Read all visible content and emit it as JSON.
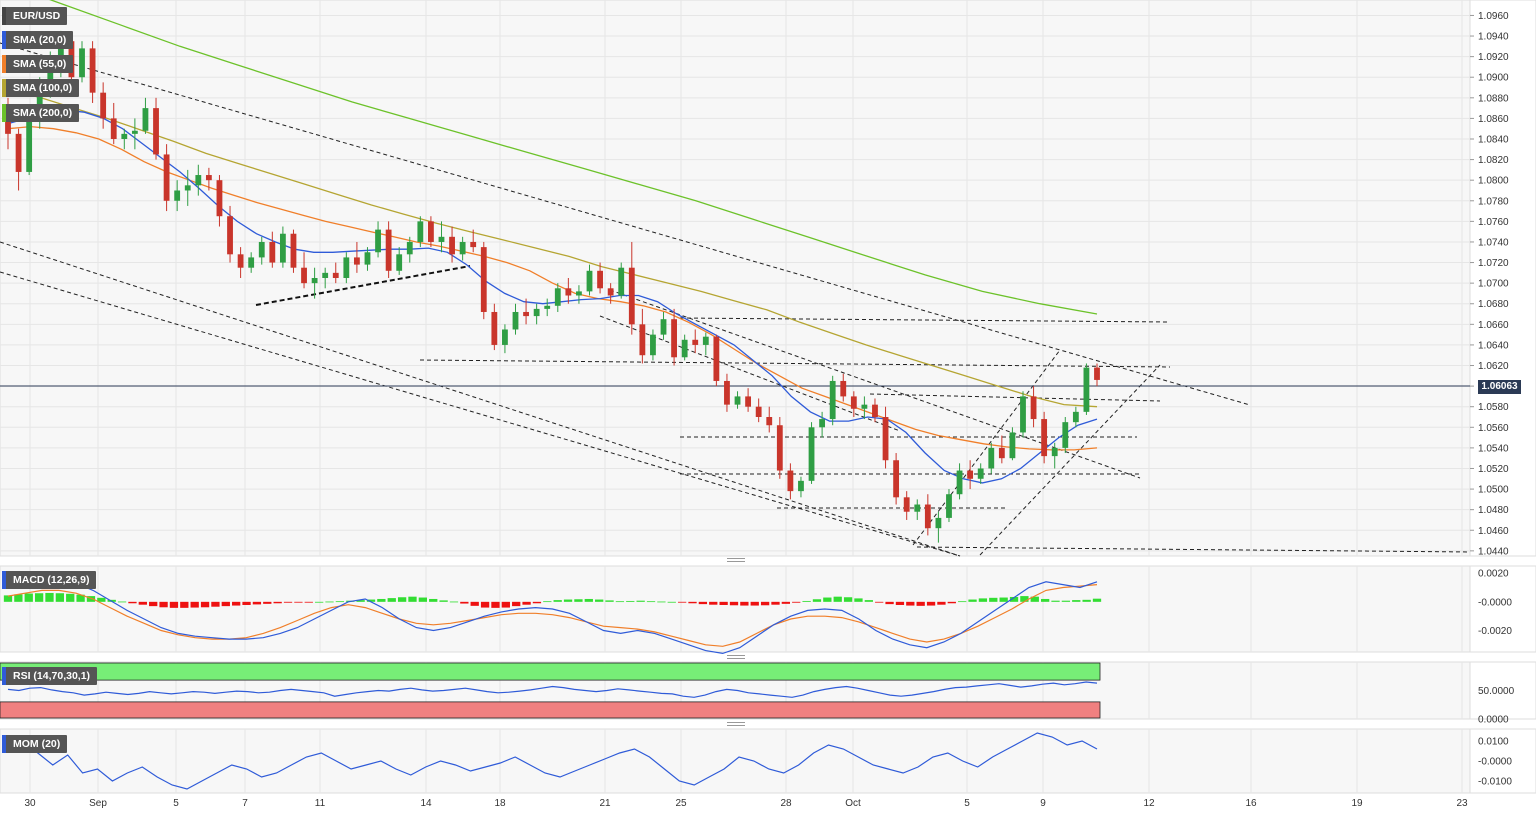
{
  "panel_labels": {
    "symbol": "EUR/USD",
    "sma20": "SMA (20,0)",
    "sma55": "SMA (55,0)",
    "sma100": "SMA (100,0)",
    "sma200": "SMA (200,0)",
    "macd": "MACD (12,26,9)",
    "rsi": "RSI (14,70,30,1)",
    "mom": "MOM (20)"
  },
  "colors": {
    "sma20": "#2f5bd8",
    "sma55": "#f07f2a",
    "sma100": "#b5a532",
    "sma200": "#6cc22a",
    "bull": "#2f9e44",
    "bear": "#c9352b",
    "macd_pos": "#33dd33",
    "macd_neg": "#ee1111",
    "price_tag_bg": "#2b3a55"
  },
  "chart_data": {
    "type": "candlestick",
    "symbol": "EUR/USD",
    "last_price": "1.06063",
    "price_axis": {
      "ylim": [
        1.0435,
        1.0975
      ],
      "ticks": [
        "1.0960",
        "1.0940",
        "1.0920",
        "1.0900",
        "1.0880",
        "1.0860",
        "1.0840",
        "1.0820",
        "1.0800",
        "1.0780",
        "1.0760",
        "1.0740",
        "1.0720",
        "1.0700",
        "1.0680",
        "1.0660",
        "1.0640",
        "1.0620",
        "1.0600",
        "1.0580",
        "1.0560",
        "1.0540",
        "1.0520",
        "1.0500",
        "1.0480",
        "1.0460",
        "1.0440"
      ]
    },
    "date_axis": {
      "ticks": [
        "30",
        "Sep",
        "5",
        "7",
        "11",
        "14",
        "18",
        "21",
        "25",
        "28",
        "Oct",
        "5",
        "9",
        "12",
        "16",
        "19",
        "23"
      ]
    },
    "candles": [
      [
        1.0862,
        1.088,
        1.083,
        1.0845
      ],
      [
        1.0845,
        1.085,
        1.079,
        1.0808
      ],
      [
        1.0808,
        1.087,
        1.0805,
        1.0862
      ],
      [
        1.0862,
        1.09,
        1.085,
        1.0893
      ],
      [
        1.0893,
        1.0925,
        1.088,
        1.0918
      ],
      [
        1.0918,
        1.0945,
        1.09,
        1.0935
      ],
      [
        1.0935,
        1.094,
        1.089,
        1.09
      ],
      [
        1.09,
        1.0935,
        1.0895,
        1.0928
      ],
      [
        1.0928,
        1.0935,
        1.0875,
        1.0885
      ],
      [
        1.0885,
        1.0895,
        1.085,
        1.086
      ],
      [
        1.086,
        1.0875,
        1.0835,
        1.084
      ],
      [
        1.084,
        1.085,
        1.083,
        1.0845
      ],
      [
        1.0845,
        1.086,
        1.083,
        1.0848
      ],
      [
        1.0848,
        1.088,
        1.0845,
        1.087
      ],
      [
        1.087,
        1.088,
        1.082,
        1.0825
      ],
      [
        1.0825,
        1.0835,
        1.077,
        1.078
      ],
      [
        1.078,
        1.08,
        1.077,
        1.079
      ],
      [
        1.079,
        1.081,
        1.0775,
        1.0795
      ],
      [
        1.0795,
        1.0815,
        1.0785,
        1.0805
      ],
      [
        1.0805,
        1.0812,
        1.079,
        1.08
      ],
      [
        1.08,
        1.0805,
        1.0755,
        1.0765
      ],
      [
        1.0765,
        1.0775,
        1.072,
        1.0728
      ],
      [
        1.0728,
        1.0735,
        1.0705,
        1.0715
      ],
      [
        1.0715,
        1.073,
        1.071,
        1.0725
      ],
      [
        1.0725,
        1.0745,
        1.0718,
        1.074
      ],
      [
        1.074,
        1.075,
        1.0715,
        1.072
      ],
      [
        1.072,
        1.0755,
        1.0715,
        1.0748
      ],
      [
        1.0748,
        1.0752,
        1.071,
        1.0715
      ],
      [
        1.0715,
        1.073,
        1.0695,
        1.07
      ],
      [
        1.07,
        1.0715,
        1.0685,
        1.0705
      ],
      [
        1.0705,
        1.0715,
        1.0695,
        1.071
      ],
      [
        1.071,
        1.072,
        1.07,
        1.0705
      ],
      [
        1.0705,
        1.073,
        1.07,
        1.0725
      ],
      [
        1.0725,
        1.074,
        1.071,
        1.0718
      ],
      [
        1.0718,
        1.0735,
        1.0712,
        1.073
      ],
      [
        1.073,
        1.076,
        1.0725,
        1.0752
      ],
      [
        1.0752,
        1.076,
        1.0705,
        1.0712
      ],
      [
        1.0712,
        1.0735,
        1.0708,
        1.0728
      ],
      [
        1.0728,
        1.0745,
        1.072,
        1.074
      ],
      [
        1.074,
        1.0765,
        1.0735,
        1.076
      ],
      [
        1.076,
        1.0765,
        1.0735,
        1.074
      ],
      [
        1.074,
        1.076,
        1.073,
        1.0745
      ],
      [
        1.0745,
        1.0755,
        1.072,
        1.0728
      ],
      [
        1.0728,
        1.0745,
        1.0722,
        1.074
      ],
      [
        1.074,
        1.0752,
        1.073,
        1.0735
      ],
      [
        1.0735,
        1.074,
        1.0665,
        1.0672
      ],
      [
        1.0672,
        1.068,
        1.0635,
        1.064
      ],
      [
        1.064,
        1.066,
        1.0632,
        1.0655
      ],
      [
        1.0655,
        1.068,
        1.065,
        1.0672
      ],
      [
        1.0672,
        1.0685,
        1.066,
        1.0668
      ],
      [
        1.0668,
        1.068,
        1.066,
        1.0675
      ],
      [
        1.0675,
        1.0685,
        1.0668,
        1.0678
      ],
      [
        1.0678,
        1.07,
        1.0672,
        1.0695
      ],
      [
        1.0695,
        1.0705,
        1.068,
        1.0688
      ],
      [
        1.0688,
        1.0698,
        1.068,
        1.0692
      ],
      [
        1.0692,
        1.0718,
        1.0688,
        1.0712
      ],
      [
        1.0712,
        1.072,
        1.069,
        1.0695
      ],
      [
        1.0695,
        1.07,
        1.068,
        1.0688
      ],
      [
        1.0688,
        1.072,
        1.0685,
        1.0715
      ],
      [
        1.0715,
        1.074,
        1.065,
        1.066
      ],
      [
        1.066,
        1.0675,
        1.0622,
        1.063
      ],
      [
        1.063,
        1.0655,
        1.0625,
        1.065
      ],
      [
        1.065,
        1.0672,
        1.0645,
        1.0665
      ],
      [
        1.0665,
        1.0675,
        1.062,
        1.0628
      ],
      [
        1.0628,
        1.065,
        1.0625,
        1.0645
      ],
      [
        1.0645,
        1.0655,
        1.0632,
        1.064
      ],
      [
        1.064,
        1.0652,
        1.063,
        1.0648
      ],
      [
        1.0648,
        1.065,
        1.06,
        1.0605
      ],
      [
        1.0605,
        1.0612,
        1.0575,
        1.0582
      ],
      [
        1.0582,
        1.0595,
        1.0578,
        1.059
      ],
      [
        1.059,
        1.0598,
        1.0575,
        1.058
      ],
      [
        1.058,
        1.0588,
        1.0565,
        1.057
      ],
      [
        1.057,
        1.058,
        1.0555,
        1.0562
      ],
      [
        1.0562,
        1.057,
        1.051,
        1.0518
      ],
      [
        1.0518,
        1.0525,
        1.049,
        1.0498
      ],
      [
        1.0498,
        1.0512,
        1.0492,
        1.0508
      ],
      [
        1.0508,
        1.0565,
        1.0505,
        1.056
      ],
      [
        1.056,
        1.0575,
        1.055,
        1.0568
      ],
      [
        1.0568,
        1.061,
        1.0562,
        1.0605
      ],
      [
        1.0605,
        1.0612,
        1.0585,
        1.059
      ],
      [
        1.059,
        1.0595,
        1.057,
        1.0578
      ],
      [
        1.0578,
        1.059,
        1.0568,
        1.0582
      ],
      [
        1.0582,
        1.0588,
        1.0565,
        1.057
      ],
      [
        1.057,
        1.058,
        1.052,
        1.0528
      ],
      [
        1.0528,
        1.0535,
        1.0485,
        1.0492
      ],
      [
        1.0492,
        1.0498,
        1.047,
        1.0478
      ],
      [
        1.0478,
        1.049,
        1.047,
        1.0485
      ],
      [
        1.0485,
        1.0495,
        1.0455,
        1.0462
      ],
      [
        1.0462,
        1.0478,
        1.0448,
        1.0472
      ],
      [
        1.0472,
        1.05,
        1.0468,
        1.0495
      ],
      [
        1.0495,
        1.0525,
        1.049,
        1.0518
      ],
      [
        1.0518,
        1.0528,
        1.05,
        1.051
      ],
      [
        1.051,
        1.0525,
        1.0505,
        1.052
      ],
      [
        1.052,
        1.0545,
        1.0515,
        1.054
      ],
      [
        1.054,
        1.0552,
        1.0525,
        1.053
      ],
      [
        1.053,
        1.056,
        1.0528,
        1.0555
      ],
      [
        1.0555,
        1.0595,
        1.055,
        1.059
      ],
      [
        1.059,
        1.06,
        1.056,
        1.0568
      ],
      [
        1.0568,
        1.0575,
        1.0525,
        1.0532
      ],
      [
        1.0532,
        1.0545,
        1.052,
        1.054
      ],
      [
        1.054,
        1.057,
        1.0535,
        1.0565
      ],
      [
        1.0565,
        1.058,
        1.056,
        1.0575
      ],
      [
        1.0575,
        1.0622,
        1.0572,
        1.0618
      ],
      [
        1.0618,
        1.0622,
        1.06,
        1.0606
      ]
    ],
    "sma20": [
      1.0855,
      1.086,
      1.0866,
      1.0868,
      1.0866,
      1.086,
      1.085,
      1.0836,
      1.0822,
      1.0808,
      1.0792,
      1.0775,
      1.076,
      1.0748,
      1.074,
      1.0733,
      1.073,
      1.073,
      1.0731,
      1.0732,
      1.0733,
      1.0733,
      1.0734,
      1.073,
      1.0718,
      1.0702,
      1.069,
      1.0682,
      1.068,
      1.0682,
      1.0684,
      1.0685,
      1.0688,
      1.0688,
      1.0682,
      1.067,
      1.066,
      1.065,
      1.064,
      1.0625,
      1.061,
      1.059,
      1.0575,
      1.0566,
      1.0566,
      1.057,
      1.0568,
      1.0555,
      1.0535,
      1.0518,
      1.051,
      1.0506,
      1.051,
      1.052,
      1.0535,
      1.055,
      1.0562,
      1.0568
    ],
    "sma55": [
      1.085,
      1.0852,
      1.085,
      1.0846,
      1.084,
      1.083,
      1.0818,
      1.0808,
      1.08,
      1.0792,
      1.0785,
      1.0778,
      1.0772,
      1.0766,
      1.076,
      1.0755,
      1.075,
      1.0745,
      1.074,
      1.0736,
      1.0731,
      1.0726,
      1.072,
      1.0712,
      1.07,
      1.069,
      1.0685,
      1.0682,
      1.0678,
      1.0672,
      1.0662,
      1.065,
      1.0636,
      1.0622,
      1.061,
      1.0598,
      1.059,
      1.0582,
      1.0574,
      1.0566,
      1.0558,
      1.0552,
      1.0548,
      1.0544,
      1.0541,
      1.0539,
      1.0538,
      1.0538,
      1.054
    ],
    "sma100": [
      1.0888,
      1.088,
      1.087,
      1.086,
      1.0849,
      1.0838,
      1.0826,
      1.0816,
      1.0806,
      1.0796,
      1.0786,
      1.0776,
      1.0767,
      1.0758,
      1.075,
      1.0742,
      1.0734,
      1.0726,
      1.0716,
      1.0708,
      1.07,
      1.0692,
      1.0683,
      1.0674,
      1.0662,
      1.0651,
      1.064,
      1.063,
      1.062,
      1.061,
      1.06,
      1.059,
      1.0582,
      1.058
    ],
    "sma200": [
      1.099,
      1.097,
      1.095,
      1.093,
      1.0912,
      1.0894,
      1.0876,
      1.086,
      1.0844,
      1.0828,
      1.0812,
      1.0796,
      1.078,
      1.0762,
      1.0744,
      1.0726,
      1.0708,
      1.0692,
      1.068,
      1.067
    ],
    "macd_hist": [
      0.00045,
      0.00052,
      0.00058,
      0.0006,
      0.00062,
      0.0006,
      0.00056,
      0.0005,
      0.0004,
      0.00028,
      0.00014,
      2e-05,
      -0.0001,
      -0.0002,
      -0.0003,
      -0.00038,
      -0.00042,
      -0.00042,
      -0.0004,
      -0.00038,
      -0.00034,
      -0.0003,
      -0.00026,
      -0.00022,
      -0.00018,
      -0.00014,
      -0.0001,
      -6e-05,
      -4e-05,
      -2e-05,
      0.0,
      2e-05,
      4e-05,
      8e-05,
      0.00012,
      0.00016,
      0.0002,
      0.00026,
      0.00032,
      0.00036,
      0.0003,
      0.0002,
      0.0001,
      2e-05,
      -0.00012,
      -0.00028,
      -0.0004,
      -0.00042,
      -0.0004,
      -0.0003,
      -0.0002,
      -0.0001,
      4e-05,
      0.00012,
      0.00016,
      0.00018,
      0.0002,
      0.00016,
      0.0001,
      4e-05,
      6e-05,
      8e-05,
      4e-05,
      2e-05,
      0.0,
      -4e-05,
      -0.0001,
      -0.00016,
      -0.0002,
      -0.00022,
      -0.00024,
      -0.00026,
      -0.00026,
      -0.00024,
      -0.0002,
      -0.00014,
      -6e-05,
      6e-05,
      0.00018,
      0.0003,
      0.00036,
      0.00032,
      0.00024,
      0.00012,
      -4e-05,
      -0.00016,
      -0.00022,
      -0.00026,
      -0.00028,
      -0.00026,
      -0.0002,
      -0.0001,
      4e-05,
      0.00016,
      0.00024,
      0.00028,
      0.0003,
      0.00034,
      0.0004,
      0.00036,
      0.0002,
      8e-05,
      8e-05,
      0.00012,
      0.00014,
      0.00022
    ],
    "macd_line": [
      0.001,
      0.0012,
      0.0014,
      0.0015,
      0.0013,
      0.0008,
      0.0001,
      -0.0006,
      -0.0012,
      -0.0018,
      -0.0022,
      -0.0024,
      -0.0025,
      -0.0026,
      -0.0026,
      -0.0025,
      -0.0022,
      -0.0018,
      -0.0012,
      -0.0006,
      0.0,
      0.0002,
      -0.0004,
      -0.0012,
      -0.0018,
      -0.002,
      -0.0018,
      -0.0014,
      -0.001,
      -0.0007,
      -0.0005,
      -0.0004,
      -0.0005,
      -0.0008,
      -0.0014,
      -0.002,
      -0.0022,
      -0.002,
      -0.0022,
      -0.0026,
      -0.003,
      -0.0034,
      -0.0036,
      -0.0032,
      -0.0024,
      -0.0016,
      -0.001,
      -0.0006,
      -0.0005,
      -0.0006,
      -0.0012,
      -0.002,
      -0.0026,
      -0.003,
      -0.0032,
      -0.0028,
      -0.0022,
      -0.0014,
      -0.0006,
      0.0002,
      0.001,
      0.0014,
      0.0012,
      0.001,
      0.0014
    ],
    "macd_signal": [
      0.0004,
      0.0006,
      0.0008,
      0.0008,
      0.0006,
      0.0002,
      -0.0004,
      -0.001,
      -0.0015,
      -0.002,
      -0.0023,
      -0.0025,
      -0.0026,
      -0.0026,
      -0.0025,
      -0.0022,
      -0.0018,
      -0.0013,
      -0.0008,
      -0.0004,
      -0.0002,
      -0.0004,
      -0.0008,
      -0.0012,
      -0.0015,
      -0.0016,
      -0.0015,
      -0.0013,
      -0.0011,
      -0.0009,
      -0.0008,
      -0.0008,
      -0.0009,
      -0.0011,
      -0.0014,
      -0.0017,
      -0.0018,
      -0.0019,
      -0.0021,
      -0.0024,
      -0.0027,
      -0.003,
      -0.0031,
      -0.0028,
      -0.0022,
      -0.0016,
      -0.0012,
      -0.001,
      -0.001,
      -0.0011,
      -0.0014,
      -0.0018,
      -0.0022,
      -0.0026,
      -0.0028,
      -0.0026,
      -0.0022,
      -0.0017,
      -0.0011,
      -0.0005,
      0.0002,
      0.0008,
      0.001,
      0.0011,
      0.0012
    ],
    "macd_axis": {
      "ticks": [
        "0.0020",
        "-0.0000",
        "-0.0020"
      ],
      "ylim": [
        -0.0035,
        0.0025
      ]
    },
    "rsi_values": [
      52,
      50,
      54,
      55,
      51,
      48,
      46,
      42,
      44,
      47,
      45,
      43,
      45,
      48,
      46,
      44,
      46,
      48,
      47,
      45,
      47,
      49,
      48,
      46,
      47,
      50,
      52,
      50,
      48,
      46,
      40,
      43,
      46,
      48,
      50,
      49,
      52,
      54,
      51,
      49,
      50,
      52,
      54,
      51,
      48,
      46,
      47,
      49,
      51,
      54,
      57,
      55,
      52,
      50,
      48,
      50,
      53,
      51,
      49,
      47,
      45,
      44,
      40,
      38,
      42,
      48,
      52,
      50,
      46,
      44,
      42,
      40,
      38,
      42,
      48,
      52,
      55,
      57,
      54,
      50,
      46,
      42,
      40,
      42,
      45,
      48,
      52,
      55,
      56,
      58,
      60,
      62,
      59,
      56,
      58,
      61,
      63,
      60,
      62,
      65,
      63
    ],
    "rsi_axis": {
      "ticks": [
        "50.0000",
        "0.0000"
      ],
      "overbought": 70,
      "oversold": 30
    },
    "mom_values": [
      0.006,
      0.01,
      0.004,
      -0.002,
      0.003,
      -0.006,
      -0.004,
      -0.01,
      -0.006,
      -0.003,
      -0.008,
      -0.012,
      -0.014,
      -0.01,
      -0.006,
      -0.002,
      -0.004,
      -0.008,
      -0.006,
      -0.002,
      0.002,
      0.004,
      0.0,
      -0.004,
      -0.002,
      0.0,
      -0.004,
      -0.007,
      -0.003,
      0.0,
      -0.002,
      -0.005,
      -0.003,
      -0.001,
      0.002,
      -0.002,
      -0.006,
      -0.008,
      -0.005,
      -0.002,
      0.001,
      0.004,
      0.006,
      0.002,
      -0.004,
      -0.01,
      -0.012,
      -0.008,
      -0.004,
      0.002,
      0.0,
      -0.004,
      -0.006,
      -0.002,
      0.004,
      0.008,
      0.006,
      0.002,
      -0.002,
      -0.004,
      -0.006,
      -0.003,
      0.002,
      0.004,
      0.0,
      -0.003,
      0.002,
      0.006,
      0.01,
      0.014,
      0.012,
      0.008,
      0.01,
      0.006
    ],
    "mom_axis": {
      "ticks": [
        "0.0100",
        "-0.0000",
        "-0.0100"
      ],
      "ylim": [
        -0.016,
        0.016
      ]
    }
  }
}
